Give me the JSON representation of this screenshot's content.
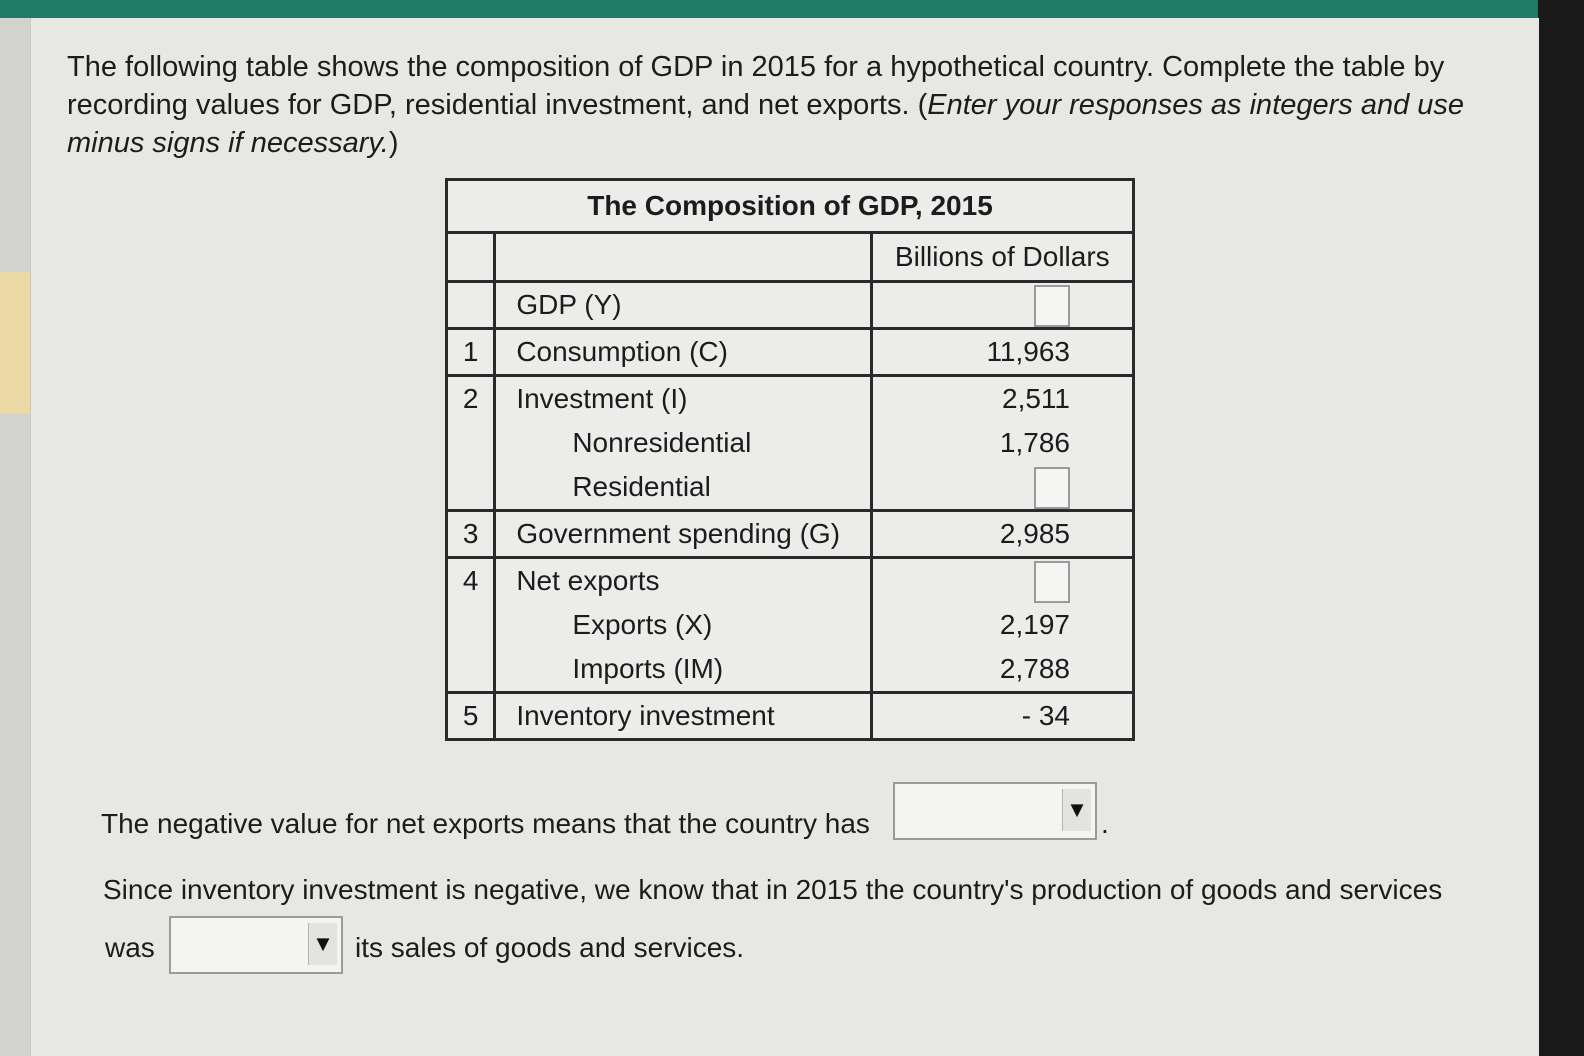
{
  "instructions": {
    "main": "The following table shows the composition of GDP in 2015 for a hypothetical country. Complete the table by recording values for GDP, residential investment, and net exports. (",
    "italic": "Enter your responses as integers and use minus signs if necessary.",
    "close": ")"
  },
  "table": {
    "title": "The Composition of GDP, 2015",
    "col_header": "Billions of Dollars",
    "gdp": {
      "label": "GDP (Y)",
      "value": ""
    },
    "consumption": {
      "num": "1",
      "label": "Consumption (C)",
      "value": "11,963"
    },
    "investment": {
      "num": "2",
      "label": "Investment (I)",
      "value": "2,511",
      "nonresidential": {
        "label": "Nonresidential",
        "value": "1,786"
      },
      "residential": {
        "label": "Residential",
        "value": ""
      }
    },
    "government": {
      "num": "3",
      "label": "Government spending (G)",
      "value": "2,985"
    },
    "net_exports": {
      "num": "4",
      "label": "Net exports",
      "value": "",
      "exports": {
        "label": "Exports (X)",
        "value": "2,197"
      },
      "imports": {
        "label": "Imports (IM)",
        "value": "2,788"
      }
    },
    "inventory": {
      "num": "5",
      "label": "Inventory investment",
      "value": "- 34"
    }
  },
  "question1": {
    "text": "The negative value for net exports means that the country has",
    "selected": "",
    "end": "."
  },
  "question2": {
    "text": "Since inventory investment is negative, we know that in 2015 the country's production of goods and services",
    "was": "was",
    "selected": "",
    "tail": "its sales of goods and services."
  },
  "icons": {
    "dropdown": "triangle-down-icon"
  }
}
